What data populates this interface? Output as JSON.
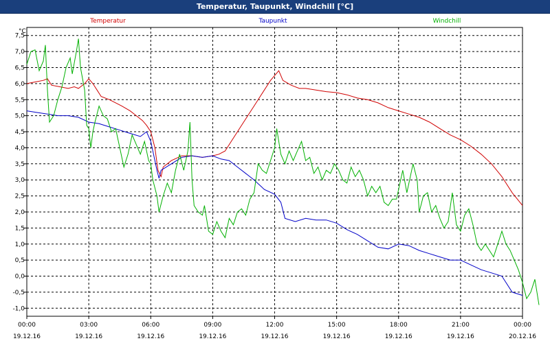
{
  "window": {
    "title": "Temperatur, Taupunkt, Windchill [°C]"
  },
  "chart_data": {
    "type": "line",
    "title": "Temperatur, Taupunkt, Windchill [°C]",
    "ylabel": "°C",
    "ylim": [
      -1.25,
      7.75
    ],
    "xlim_hours": [
      0,
      24
    ],
    "grid": true,
    "legend": "top",
    "y_ticks": [
      "7,5",
      "7,0",
      "6,5",
      "6,0",
      "5,5",
      "5,0",
      "4,5",
      "4,0",
      "3,5",
      "3,0",
      "2,5",
      "2,0",
      "1,5",
      "1,0",
      "0,5",
      "0,0",
      "-0,5",
      "-1,0"
    ],
    "x_ticks": [
      {
        "time": "00:00",
        "date": "19.12.16"
      },
      {
        "time": "03:00",
        "date": "19.12.16"
      },
      {
        "time": "06:00",
        "date": "19.12.16"
      },
      {
        "time": "09:00",
        "date": "19.12.16"
      },
      {
        "time": "12:00",
        "date": "19.12.16"
      },
      {
        "time": "15:00",
        "date": "19.12.16"
      },
      {
        "time": "18:00",
        "date": "19.12.16"
      },
      {
        "time": "21:00",
        "date": "19.12.16"
      },
      {
        "time": "00:00",
        "date": "20.12.16"
      }
    ],
    "series": [
      {
        "name": "Temperatur",
        "color": "#d00000",
        "points": [
          [
            0,
            6.0
          ],
          [
            0.4,
            6.05
          ],
          [
            0.8,
            6.1
          ],
          [
            1.0,
            6.15
          ],
          [
            1.2,
            5.95
          ],
          [
            1.6,
            5.9
          ],
          [
            2.0,
            5.85
          ],
          [
            2.3,
            5.9
          ],
          [
            2.5,
            5.85
          ],
          [
            2.8,
            6.0
          ],
          [
            3.0,
            6.15
          ],
          [
            3.2,
            6.0
          ],
          [
            3.4,
            5.8
          ],
          [
            3.6,
            5.6
          ],
          [
            4.0,
            5.5
          ],
          [
            4.3,
            5.4
          ],
          [
            4.6,
            5.3
          ],
          [
            5.0,
            5.15
          ],
          [
            5.3,
            5.0
          ],
          [
            5.6,
            4.85
          ],
          [
            5.8,
            4.7
          ],
          [
            6.0,
            4.5
          ],
          [
            6.2,
            4.0
          ],
          [
            6.35,
            3.3
          ],
          [
            6.5,
            3.1
          ],
          [
            6.6,
            3.4
          ],
          [
            7.0,
            3.6
          ],
          [
            7.5,
            3.75
          ],
          [
            8.0,
            3.75
          ],
          [
            8.5,
            3.7
          ],
          [
            9.0,
            3.75
          ],
          [
            9.3,
            3.8
          ],
          [
            9.6,
            3.9
          ],
          [
            10.0,
            4.3
          ],
          [
            10.5,
            4.8
          ],
          [
            11.0,
            5.3
          ],
          [
            11.5,
            5.8
          ],
          [
            11.8,
            6.1
          ],
          [
            12.2,
            6.4
          ],
          [
            12.4,
            6.1
          ],
          [
            12.8,
            5.95
          ],
          [
            13.2,
            5.85
          ],
          [
            13.5,
            5.85
          ],
          [
            14.0,
            5.8
          ],
          [
            14.5,
            5.75
          ],
          [
            15.0,
            5.72
          ],
          [
            15.5,
            5.65
          ],
          [
            16.0,
            5.55
          ],
          [
            16.5,
            5.5
          ],
          [
            17.0,
            5.4
          ],
          [
            17.5,
            5.25
          ],
          [
            18.0,
            5.15
          ],
          [
            18.5,
            5.05
          ],
          [
            19.0,
            4.95
          ],
          [
            19.5,
            4.8
          ],
          [
            20.0,
            4.6
          ],
          [
            20.5,
            4.4
          ],
          [
            21.0,
            4.25
          ],
          [
            21.5,
            4.05
          ],
          [
            22.0,
            3.8
          ],
          [
            22.5,
            3.5
          ],
          [
            23.0,
            3.1
          ],
          [
            23.5,
            2.6
          ],
          [
            24.0,
            2.2
          ]
        ]
      },
      {
        "name": "Taupunkt",
        "color": "#0000c8",
        "points": [
          [
            0,
            5.15
          ],
          [
            0.5,
            5.1
          ],
          [
            1.0,
            5.05
          ],
          [
            1.5,
            5.0
          ],
          [
            2.0,
            5.0
          ],
          [
            2.5,
            4.95
          ],
          [
            3.0,
            4.8
          ],
          [
            3.5,
            4.75
          ],
          [
            4.0,
            4.65
          ],
          [
            4.5,
            4.55
          ],
          [
            5.0,
            4.45
          ],
          [
            5.5,
            4.35
          ],
          [
            5.8,
            4.5
          ],
          [
            6.0,
            4.2
          ],
          [
            6.2,
            3.6
          ],
          [
            6.3,
            3.3
          ],
          [
            6.4,
            3.05
          ],
          [
            6.5,
            3.3
          ],
          [
            7.0,
            3.5
          ],
          [
            7.5,
            3.7
          ],
          [
            8.0,
            3.75
          ],
          [
            8.5,
            3.7
          ],
          [
            9.0,
            3.75
          ],
          [
            9.4,
            3.65
          ],
          [
            9.8,
            3.6
          ],
          [
            10.2,
            3.4
          ],
          [
            10.6,
            3.2
          ],
          [
            11.0,
            3.0
          ],
          [
            11.5,
            2.7
          ],
          [
            12.0,
            2.55
          ],
          [
            12.3,
            2.3
          ],
          [
            12.5,
            1.8
          ],
          [
            13.0,
            1.7
          ],
          [
            13.5,
            1.8
          ],
          [
            14.0,
            1.75
          ],
          [
            14.5,
            1.75
          ],
          [
            15.0,
            1.65
          ],
          [
            15.5,
            1.45
          ],
          [
            16.0,
            1.3
          ],
          [
            16.5,
            1.1
          ],
          [
            17.0,
            0.9
          ],
          [
            17.5,
            0.85
          ],
          [
            18.0,
            1.0
          ],
          [
            18.5,
            0.95
          ],
          [
            19.0,
            0.8
          ],
          [
            19.5,
            0.7
          ],
          [
            20.0,
            0.6
          ],
          [
            20.5,
            0.5
          ],
          [
            21.0,
            0.5
          ],
          [
            21.5,
            0.35
          ],
          [
            22.0,
            0.2
          ],
          [
            22.5,
            0.1
          ],
          [
            23.0,
            0.0
          ],
          [
            23.5,
            -0.5
          ],
          [
            24.0,
            -0.6
          ]
        ]
      },
      {
        "name": "Windchill",
        "color": "#00b000",
        "points": [
          [
            0,
            6.6
          ],
          [
            0.2,
            7.0
          ],
          [
            0.4,
            7.05
          ],
          [
            0.6,
            6.4
          ],
          [
            0.8,
            6.7
          ],
          [
            0.9,
            7.2
          ],
          [
            1.0,
            5.8
          ],
          [
            1.1,
            4.8
          ],
          [
            1.3,
            5.0
          ],
          [
            1.5,
            5.5
          ],
          [
            1.7,
            5.9
          ],
          [
            1.9,
            6.5
          ],
          [
            2.1,
            6.8
          ],
          [
            2.2,
            6.3
          ],
          [
            2.4,
            7.0
          ],
          [
            2.5,
            7.4
          ],
          [
            2.6,
            6.5
          ],
          [
            2.8,
            5.8
          ],
          [
            2.9,
            4.7
          ],
          [
            3.0,
            4.6
          ],
          [
            3.1,
            4.0
          ],
          [
            3.2,
            4.5
          ],
          [
            3.3,
            4.8
          ],
          [
            3.5,
            5.3
          ],
          [
            3.7,
            5.0
          ],
          [
            3.9,
            4.9
          ],
          [
            4.1,
            4.5
          ],
          [
            4.3,
            4.6
          ],
          [
            4.5,
            4.0
          ],
          [
            4.7,
            3.4
          ],
          [
            4.9,
            3.8
          ],
          [
            5.1,
            4.4
          ],
          [
            5.3,
            4.1
          ],
          [
            5.5,
            3.8
          ],
          [
            5.7,
            4.2
          ],
          [
            5.9,
            3.6
          ],
          [
            6.0,
            3.5
          ],
          [
            6.1,
            3.0
          ],
          [
            6.3,
            2.5
          ],
          [
            6.4,
            2.0
          ],
          [
            6.6,
            2.5
          ],
          [
            6.8,
            2.9
          ],
          [
            7.0,
            2.6
          ],
          [
            7.2,
            3.3
          ],
          [
            7.4,
            3.8
          ],
          [
            7.6,
            3.3
          ],
          [
            7.8,
            3.9
          ],
          [
            7.9,
            4.8
          ],
          [
            8.0,
            3.0
          ],
          [
            8.1,
            2.2
          ],
          [
            8.3,
            2.0
          ],
          [
            8.5,
            1.9
          ],
          [
            8.6,
            2.2
          ],
          [
            8.8,
            1.4
          ],
          [
            9.0,
            1.3
          ],
          [
            9.2,
            1.7
          ],
          [
            9.4,
            1.4
          ],
          [
            9.6,
            1.2
          ],
          [
            9.8,
            1.8
          ],
          [
            10.0,
            1.6
          ],
          [
            10.2,
            2.0
          ],
          [
            10.4,
            2.1
          ],
          [
            10.6,
            1.9
          ],
          [
            10.8,
            2.4
          ],
          [
            11.0,
            2.6
          ],
          [
            11.2,
            3.5
          ],
          [
            11.4,
            3.3
          ],
          [
            11.6,
            3.2
          ],
          [
            11.8,
            3.6
          ],
          [
            12.0,
            4.0
          ],
          [
            12.1,
            4.6
          ],
          [
            12.3,
            3.8
          ],
          [
            12.5,
            3.5
          ],
          [
            12.7,
            3.9
          ],
          [
            12.9,
            3.6
          ],
          [
            13.1,
            3.9
          ],
          [
            13.3,
            4.2
          ],
          [
            13.5,
            3.6
          ],
          [
            13.7,
            3.7
          ],
          [
            13.9,
            3.2
          ],
          [
            14.1,
            3.4
          ],
          [
            14.3,
            3.0
          ],
          [
            14.5,
            3.3
          ],
          [
            14.7,
            3.2
          ],
          [
            14.9,
            3.5
          ],
          [
            15.1,
            3.3
          ],
          [
            15.3,
            3.0
          ],
          [
            15.5,
            2.9
          ],
          [
            15.7,
            3.4
          ],
          [
            15.9,
            3.1
          ],
          [
            16.1,
            3.3
          ],
          [
            16.3,
            3.0
          ],
          [
            16.5,
            2.5
          ],
          [
            16.7,
            2.8
          ],
          [
            16.9,
            2.6
          ],
          [
            17.1,
            2.8
          ],
          [
            17.3,
            2.3
          ],
          [
            17.5,
            2.2
          ],
          [
            17.7,
            2.4
          ],
          [
            17.9,
            2.4
          ],
          [
            18.1,
            3.0
          ],
          [
            18.2,
            3.3
          ],
          [
            18.4,
            2.6
          ],
          [
            18.5,
            2.9
          ],
          [
            18.7,
            3.5
          ],
          [
            18.9,
            3.0
          ],
          [
            19.0,
            2.0
          ],
          [
            19.2,
            2.5
          ],
          [
            19.4,
            2.6
          ],
          [
            19.6,
            2.0
          ],
          [
            19.8,
            2.2
          ],
          [
            20.0,
            1.8
          ],
          [
            20.2,
            1.5
          ],
          [
            20.4,
            1.7
          ],
          [
            20.6,
            2.6
          ],
          [
            20.8,
            1.6
          ],
          [
            21.0,
            1.4
          ],
          [
            21.2,
            1.9
          ],
          [
            21.4,
            2.1
          ],
          [
            21.6,
            1.6
          ],
          [
            21.8,
            1.0
          ],
          [
            22.0,
            0.8
          ],
          [
            22.2,
            1.0
          ],
          [
            22.4,
            0.8
          ],
          [
            22.6,
            0.6
          ],
          [
            22.8,
            1.0
          ],
          [
            23.0,
            1.4
          ],
          [
            23.2,
            1.0
          ],
          [
            23.4,
            0.8
          ],
          [
            23.6,
            0.5
          ],
          [
            23.8,
            0.2
          ],
          [
            24.0,
            -0.2
          ],
          [
            24.2,
            -0.7
          ],
          [
            24.4,
            -0.5
          ],
          [
            24.6,
            -0.1
          ],
          [
            24.8,
            -0.9
          ]
        ]
      }
    ]
  }
}
